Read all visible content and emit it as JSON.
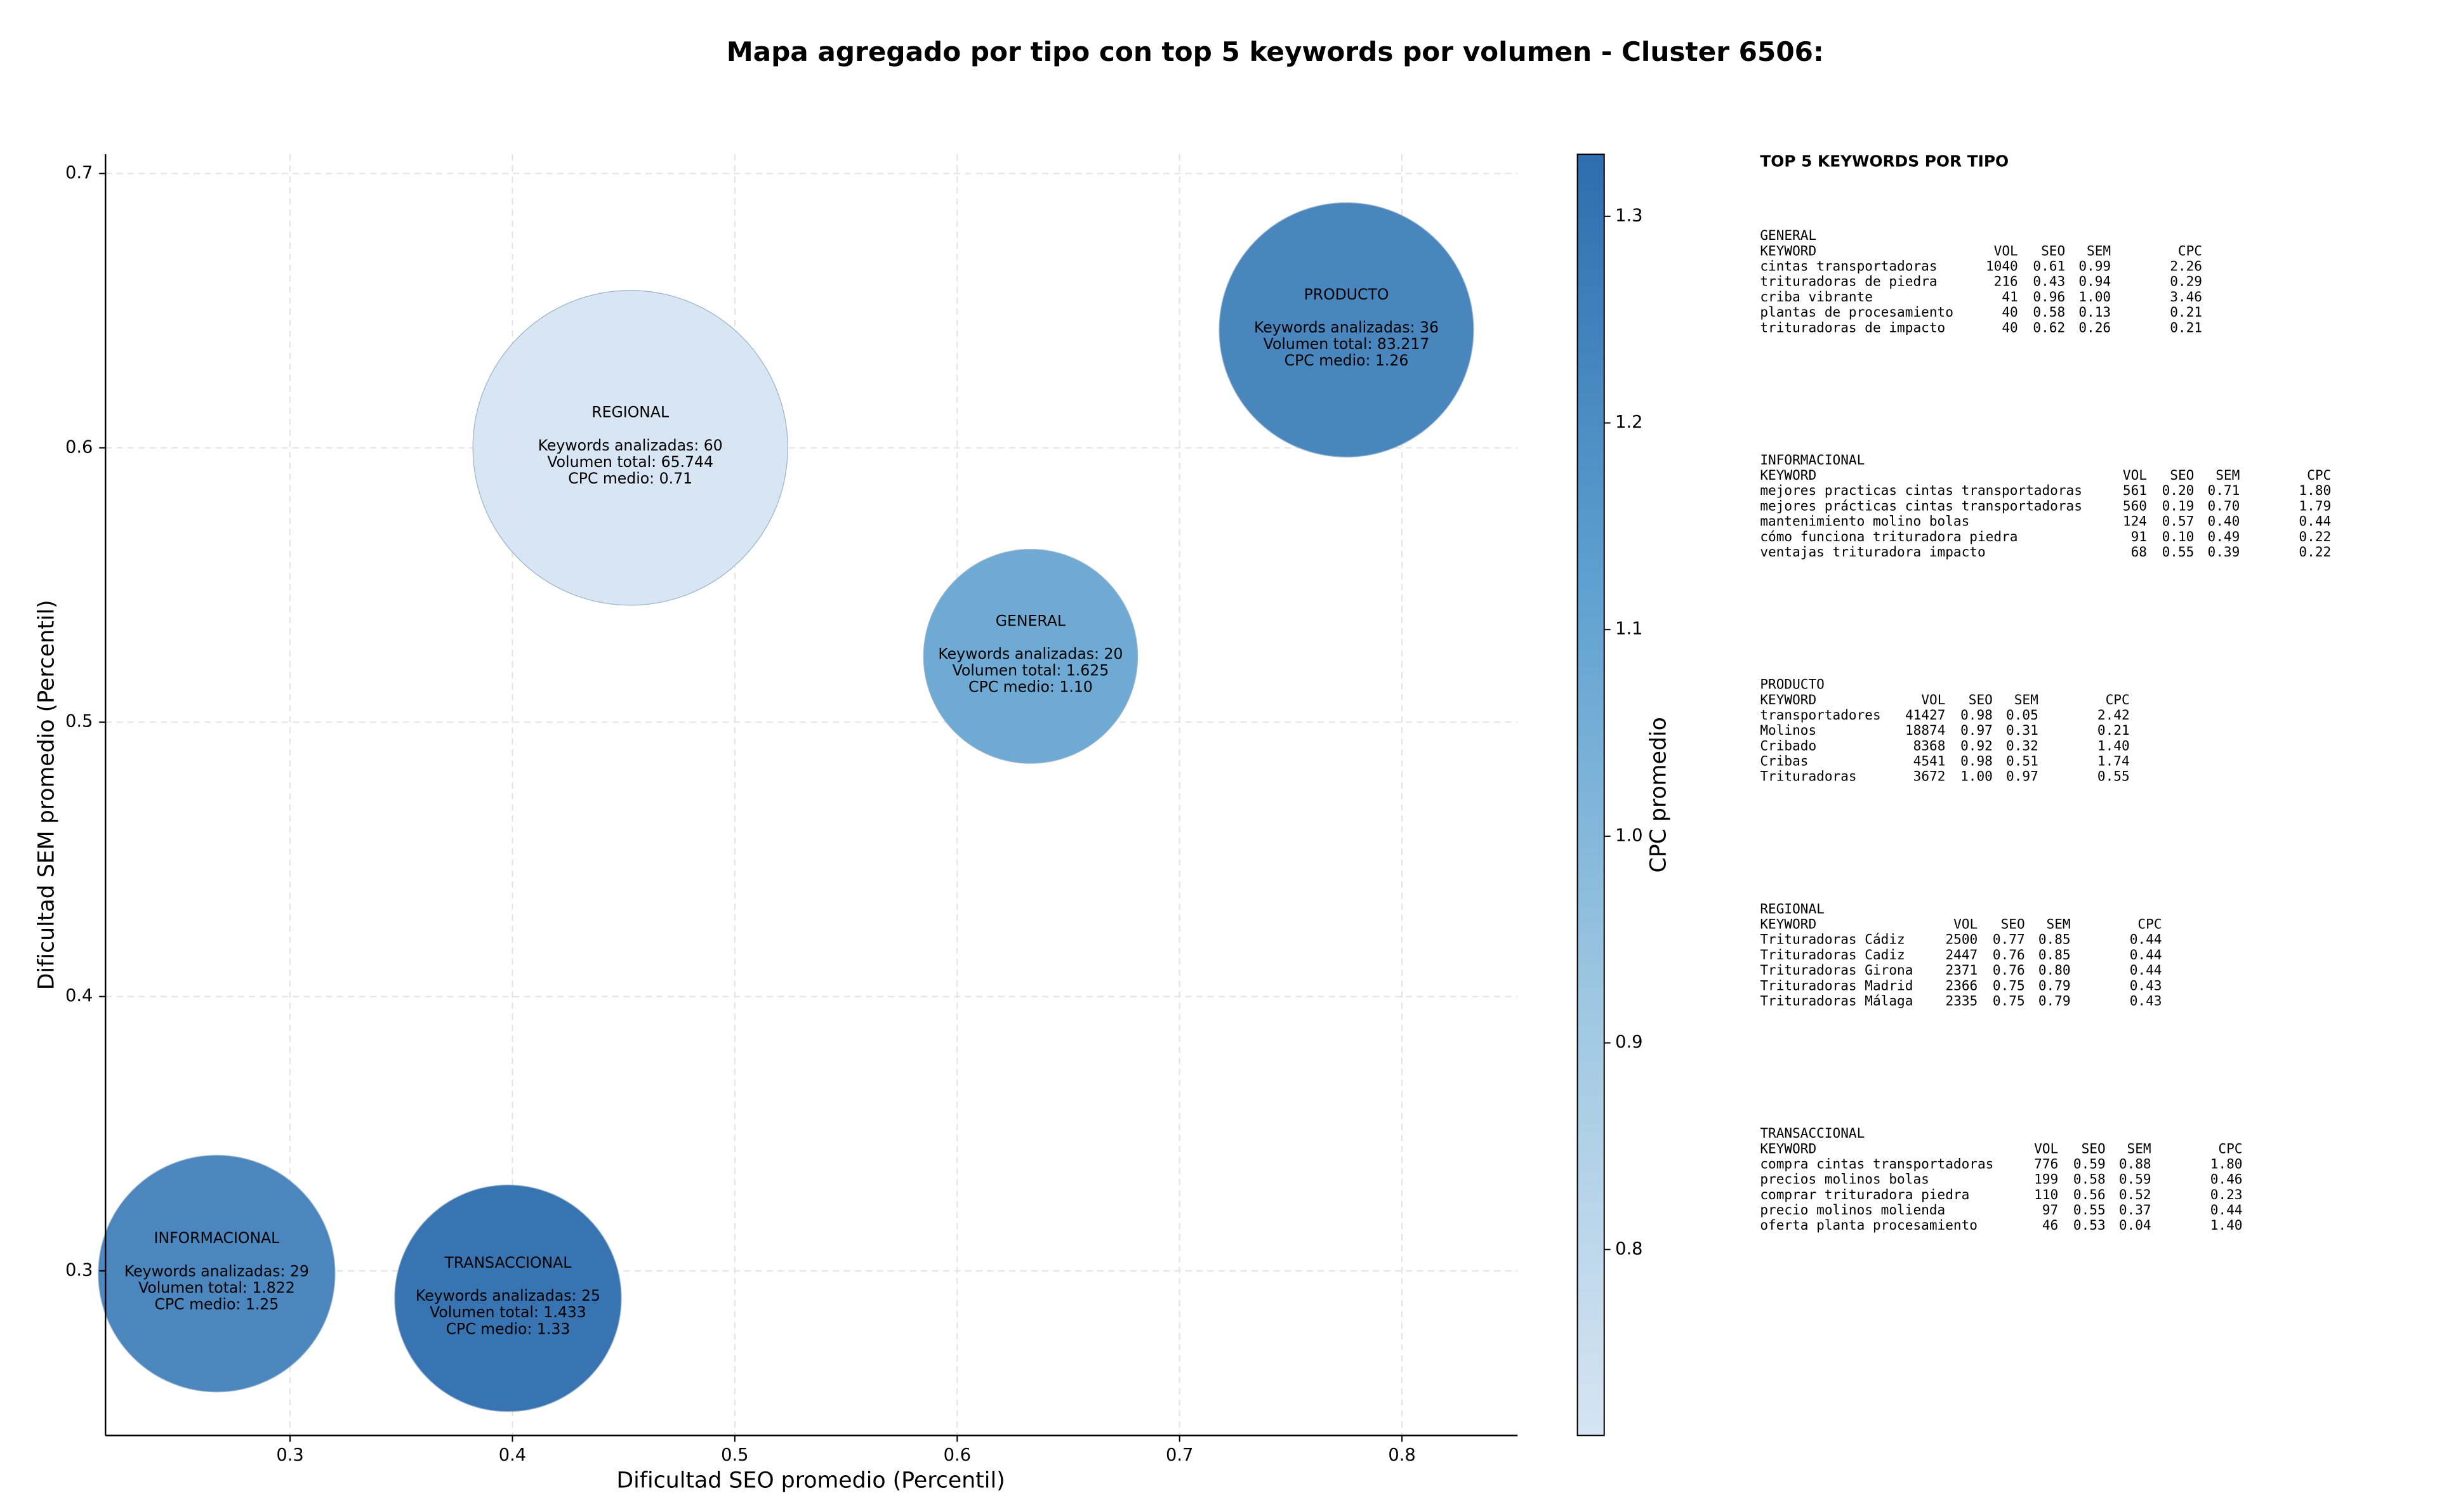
{
  "chart_data": {
    "type": "bubble",
    "title": "Mapa agregado por tipo con top 5 keywords por volumen - Cluster 6506:",
    "x_label": "Dificultad SEO promedio (Percentil)",
    "y_label": "Dificultad SEM promedio (Percentil)",
    "xlim": [
      0.217,
      0.852
    ],
    "xticks": [
      0.3,
      0.4,
      0.5,
      0.6,
      0.7,
      0.8
    ],
    "ylim": [
      0.24,
      0.707
    ],
    "yticks": [
      0.3,
      0.4,
      0.5,
      0.6,
      0.7
    ],
    "grid": true,
    "colorbar": {
      "label": "CPC promedio",
      "lim": [
        0.71,
        1.33
      ],
      "ticks": [
        0.8,
        0.9,
        {
          "value": 1.0,
          "label": "1.0"
        },
        1.1,
        1.2,
        1.3
      ]
    },
    "points": [
      {
        "name": "REGIONAL",
        "x": 0.453,
        "y": 0.6,
        "keywords": 60,
        "volume": 65744,
        "cpc": 0.71,
        "labels": [
          "Keywords analizadas: 60",
          "Volumen total: 65.744",
          "CPC medio: 0.71"
        ]
      },
      {
        "name": "PRODUCTO",
        "x": 0.775,
        "y": 0.643,
        "keywords": 36,
        "volume": 83217,
        "cpc": 1.26,
        "labels": [
          "Keywords analizadas: 36",
          "Volumen total: 83.217",
          "CPC medio: 1.26"
        ]
      },
      {
        "name": "GENERAL",
        "x": 0.633,
        "y": 0.524,
        "keywords": 20,
        "volume": 1625,
        "cpc": 1.1,
        "labels": [
          "Keywords analizadas: 20",
          "Volumen total: 1.625",
          "CPC medio: 1.10"
        ]
      },
      {
        "name": "INFORMACIONAL",
        "x": 0.267,
        "y": 0.299,
        "keywords": 29,
        "volume": 1822,
        "cpc": 1.25,
        "labels": [
          "Keywords analizadas: 29",
          "Volumen total: 1.822",
          "CPC medio: 1.25"
        ]
      },
      {
        "name": "TRANSACCIONAL",
        "x": 0.398,
        "y": 0.29,
        "keywords": 25,
        "volume": 1433,
        "cpc": 1.33,
        "labels": [
          "Keywords analizadas: 25",
          "Volumen total: 1.433",
          "CPC medio: 1.33"
        ]
      }
    ]
  },
  "keyword_panel": {
    "title": "TOP 5 KEYWORDS POR TIPO",
    "tables": [
      {
        "name": "GENERAL",
        "header": [
          "KEYWORD",
          "VOL",
          "SEO",
          "SEM",
          "CPC"
        ],
        "rows": [
          [
            "cintas transportadoras",
            "1040",
            "0.61",
            "0.99",
            "2.26"
          ],
          [
            "trituradoras de piedra",
            "216",
            "0.43",
            "0.94",
            "0.29"
          ],
          [
            "criba vibrante",
            "41",
            "0.96",
            "1.00",
            "3.46"
          ],
          [
            "plantas de procesamiento",
            "40",
            "0.58",
            "0.13",
            "0.21"
          ],
          [
            "trituradoras de impacto",
            "40",
            "0.62",
            "0.26",
            "0.21"
          ]
        ]
      },
      {
        "name": "INFORMACIONAL",
        "header": [
          "KEYWORD",
          "VOL",
          "SEO",
          "SEM",
          "CPC"
        ],
        "rows": [
          [
            "mejores practicas cintas transportadoras",
            "561",
            "0.20",
            "0.71",
            "1.80"
          ],
          [
            "mejores prácticas cintas transportadoras",
            "560",
            "0.19",
            "0.70",
            "1.79"
          ],
          [
            "mantenimiento molino bolas",
            "124",
            "0.57",
            "0.40",
            "0.44"
          ],
          [
            "cómo funciona trituradora piedra",
            "91",
            "0.10",
            "0.49",
            "0.22"
          ],
          [
            "ventajas trituradora impacto",
            "68",
            "0.55",
            "0.39",
            "0.22"
          ]
        ]
      },
      {
        "name": "PRODUCTO",
        "header": [
          "KEYWORD",
          "VOL",
          "SEO",
          "SEM",
          "CPC"
        ],
        "rows": [
          [
            "transportadores",
            "41427",
            "0.98",
            "0.05",
            "2.42"
          ],
          [
            "Molinos",
            "18874",
            "0.97",
            "0.31",
            "0.21"
          ],
          [
            "Cribado",
            "8368",
            "0.92",
            "0.32",
            "1.40"
          ],
          [
            "Cribas",
            "4541",
            "0.98",
            "0.51",
            "1.74"
          ],
          [
            "Trituradoras",
            "3672",
            "1.00",
            "0.97",
            "0.55"
          ]
        ]
      },
      {
        "name": "REGIONAL",
        "header": [
          "KEYWORD",
          "VOL",
          "SEO",
          "SEM",
          "CPC"
        ],
        "rows": [
          [
            "Trituradoras Cádiz",
            "2500",
            "0.77",
            "0.85",
            "0.44"
          ],
          [
            "Trituradoras Cadiz",
            "2447",
            "0.76",
            "0.85",
            "0.44"
          ],
          [
            "Trituradoras Girona",
            "2371",
            "0.76",
            "0.80",
            "0.44"
          ],
          [
            "Trituradoras Madrid",
            "2366",
            "0.75",
            "0.79",
            "0.43"
          ],
          [
            "Trituradoras Málaga",
            "2335",
            "0.75",
            "0.79",
            "0.43"
          ]
        ]
      },
      {
        "name": "TRANSACCIONAL",
        "header": [
          "KEYWORD",
          "VOL",
          "SEO",
          "SEM",
          "CPC"
        ],
        "rows": [
          [
            "compra cintas transportadoras",
            "776",
            "0.59",
            "0.88",
            "1.80"
          ],
          [
            "precios molinos bolas",
            "199",
            "0.58",
            "0.59",
            "0.46"
          ],
          [
            "comprar trituradora piedra",
            "110",
            "0.56",
            "0.52",
            "0.23"
          ],
          [
            "precio molinos molienda",
            "97",
            "0.55",
            "0.37",
            "0.44"
          ],
          [
            "oferta planta procesamiento",
            "46",
            "0.53",
            "0.04",
            "1.40"
          ]
        ]
      }
    ]
  }
}
